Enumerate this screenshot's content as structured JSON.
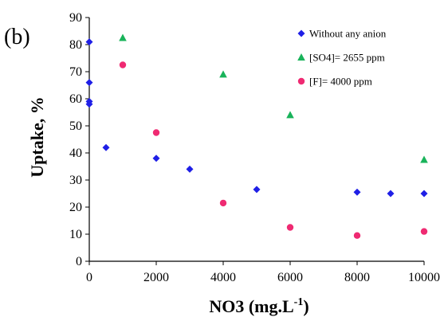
{
  "chart_data": {
    "type": "scatter",
    "panel_label": "(b)",
    "xlabel": "NO3 (mg.L",
    "xlabel_sup": "-1",
    "xlabel_end": ")",
    "ylabel": "Uptake, %",
    "xlim": [
      0,
      10000
    ],
    "ylim": [
      0,
      90
    ],
    "x_ticks": [
      0,
      2000,
      4000,
      6000,
      8000,
      10000
    ],
    "y_ticks": [
      0,
      10,
      20,
      30,
      40,
      50,
      60,
      70,
      80,
      90
    ],
    "grid": false,
    "legend_position": "top-right",
    "series": [
      {
        "name": "Without any anion",
        "marker": "diamond",
        "color": "#1f1fe6",
        "points": [
          [
            0,
            81
          ],
          [
            0,
            66
          ],
          [
            0,
            59
          ],
          [
            0,
            58
          ],
          [
            500,
            42
          ],
          [
            2000,
            38
          ],
          [
            3000,
            34
          ],
          [
            5000,
            26.5
          ],
          [
            8000,
            25.5
          ],
          [
            9000,
            25
          ],
          [
            10000,
            25
          ]
        ]
      },
      {
        "name": "[SO4]= 2655  ppm",
        "marker": "triangle",
        "color": "#19b35a",
        "points": [
          [
            1000,
            82.5
          ],
          [
            4000,
            69
          ],
          [
            6000,
            54
          ],
          [
            10000,
            37.5
          ]
        ]
      },
      {
        "name": "[F]= 4000  ppm",
        "marker": "circle",
        "color": "#ef2a72",
        "points": [
          [
            1000,
            72.5
          ],
          [
            2000,
            47.5
          ],
          [
            4000,
            21.5
          ],
          [
            6000,
            12.5
          ],
          [
            8000,
            9.5
          ],
          [
            10000,
            11
          ]
        ]
      }
    ]
  }
}
